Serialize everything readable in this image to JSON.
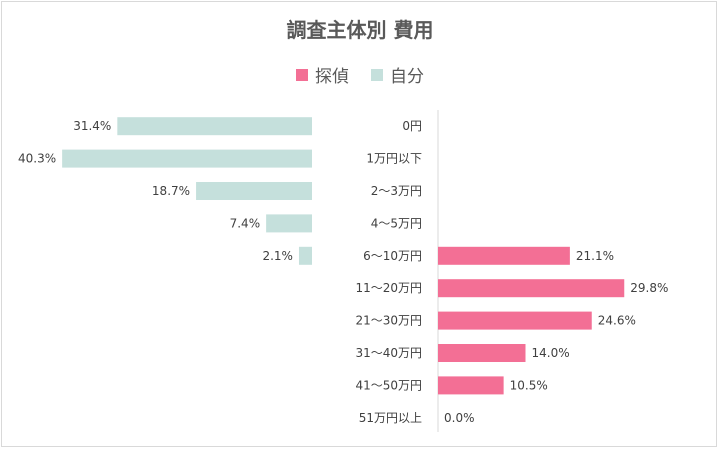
{
  "chart_data": {
    "type": "bar",
    "orientation": "horizontal-butterfly",
    "title": "調査主体別 費用",
    "categories": [
      "0円",
      "1万円以下",
      "2〜3万円",
      "4〜5万円",
      "6〜10万円",
      "11〜20万円",
      "21〜30万円",
      "31〜40万円",
      "41〜50万円",
      "51万円以上"
    ],
    "series": [
      {
        "name": "探偵",
        "color": "#f36f95",
        "values": [
          null,
          null,
          null,
          null,
          21.1,
          29.8,
          24.6,
          14.0,
          10.5,
          0.0
        ],
        "labels": [
          "",
          "",
          "",
          "",
          "21.1%",
          "29.8%",
          "24.6%",
          "14.0%",
          "10.5%",
          "0.0%"
        ]
      },
      {
        "name": "自分",
        "color": "#c5e0dc",
        "values": [
          31.4,
          40.3,
          18.7,
          7.4,
          2.1,
          null,
          null,
          null,
          null,
          null
        ],
        "labels": [
          "31.4%",
          "40.3%",
          "18.7%",
          "7.4%",
          "2.1%",
          "",
          "",
          "",
          "",
          ""
        ]
      }
    ],
    "legend": "top-center",
    "grid": false
  }
}
